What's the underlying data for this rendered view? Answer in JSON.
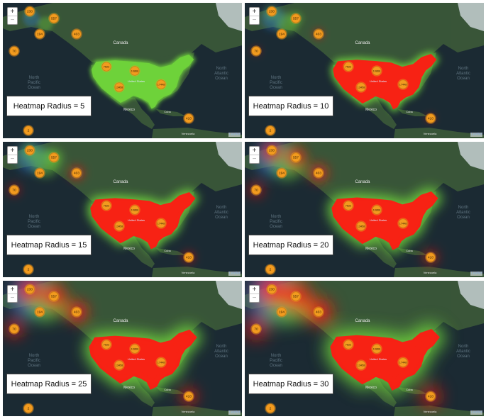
{
  "panels": [
    {
      "caption": "Heatmap Radius = 5",
      "radius": 5
    },
    {
      "caption": "Heatmap Radius = 10",
      "radius": 10
    },
    {
      "caption": "Heatmap Radius = 15",
      "radius": 15
    },
    {
      "caption": "Heatmap Radius = 20",
      "radius": 20
    },
    {
      "caption": "Heatmap Radius = 25",
      "radius": 25
    },
    {
      "caption": "Heatmap Radius = 30",
      "radius": 30
    }
  ],
  "map_labels": {
    "canada": "Canada",
    "united_states": "United States",
    "mexico": "Mexico",
    "cuba": "Cuba",
    "venezuela": "Venezuela",
    "north_pacific": "North Pacific Ocean",
    "north_atlantic": "North Atlantic Ocean"
  },
  "clusters": [
    "230",
    "557",
    "194",
    "403",
    "70",
    "7522",
    "10868",
    "17448",
    "13458",
    "410",
    "2"
  ],
  "zoom": {
    "in": "+",
    "out": "−"
  },
  "attribution": "Leaflet",
  "colors": {
    "ocean": "#1b2a33",
    "land": "#3e5d3a",
    "heat_low": "#2a7bd0",
    "heat_mid": "#6fd33a",
    "heat_high": "#ff1a12",
    "cluster": "#f29b1f"
  }
}
